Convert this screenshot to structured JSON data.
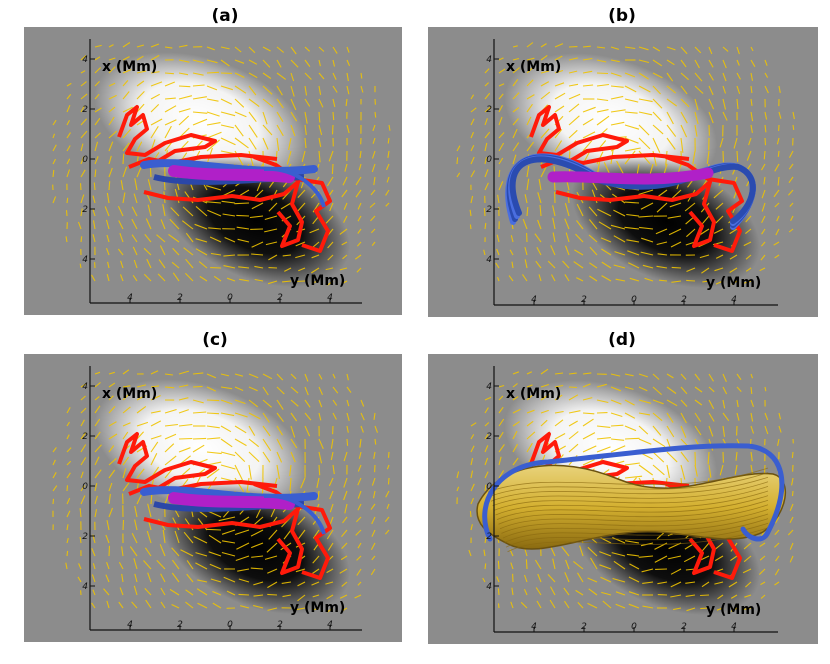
{
  "figure": {
    "panels": [
      {
        "label": "(a)",
        "x_axis_label": "x (Mm)",
        "y_axis_label": "y (Mm)",
        "x_ticks": [
          "4",
          "2",
          "0",
          "2",
          "4"
        ],
        "y_ticks": [
          "4",
          "2",
          "0",
          "2",
          "4"
        ],
        "flux_rope": "thin-twisted",
        "colors": {
          "rope_core": "#b020c8",
          "rope_shell": "#3a5ed0",
          "field": "#f0c400",
          "contour": "#ff1a0a"
        }
      },
      {
        "label": "(b)",
        "x_axis_label": "x (Mm)",
        "y_axis_label": "y (Mm)",
        "x_ticks": [
          "4",
          "2",
          "0",
          "2",
          "4"
        ],
        "y_ticks": [
          "4",
          "2",
          "0",
          "2",
          "4"
        ],
        "flux_rope": "expanded-loops",
        "colors": {
          "rope_core": "#b020c8",
          "rope_shell": "#3a5ed0",
          "field": "#f0c400",
          "contour": "#ff1a0a"
        }
      },
      {
        "label": "(c)",
        "x_axis_label": "x (Mm)",
        "y_axis_label": "y (Mm)",
        "x_ticks": [
          "4",
          "2",
          "0",
          "2",
          "4"
        ],
        "y_ticks": [
          "4",
          "2",
          "0",
          "2",
          "4"
        ],
        "flux_rope": "thin-twisted",
        "colors": {
          "rope_core": "#b020c8",
          "rope_shell": "#3a5ed0",
          "field": "#f0c400",
          "contour": "#ff1a0a"
        }
      },
      {
        "label": "(d)",
        "x_axis_label": "x (Mm)",
        "y_axis_label": "y (Mm)",
        "x_ticks": [
          "4",
          "2",
          "0",
          "2",
          "4"
        ],
        "y_ticks": [
          "4",
          "2",
          "0",
          "2",
          "4"
        ],
        "flux_rope": "golden-bundle",
        "colors": {
          "rope_core": "#d4b030",
          "rope_shell": "#3a5ed0",
          "field": "#f0c400",
          "contour": "#ff1a0a"
        }
      }
    ]
  }
}
